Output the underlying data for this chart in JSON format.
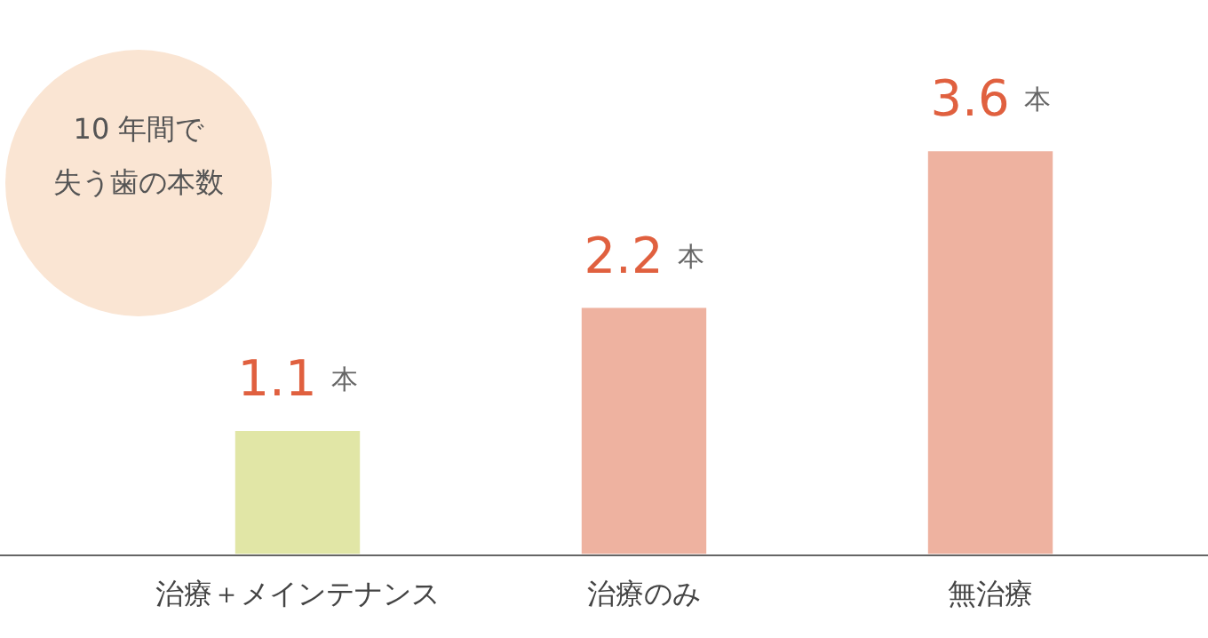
{
  "chart_data": {
    "type": "bar",
    "title": "10 年間で",
    "subtitle": "失う歯の本数",
    "categories": [
      "治療＋メインテナンス",
      "治療のみ",
      "無治療"
    ],
    "values": [
      1.1,
      2.2,
      3.6
    ],
    "colors": [
      "#e1e6a6",
      "#eeb2a0",
      "#eeb2a0"
    ],
    "value_labels": [
      "1.1 本",
      "2.2 本",
      "3.6 本"
    ],
    "grid": false,
    "legend": false,
    "tick_labels": "x"
  }
}
